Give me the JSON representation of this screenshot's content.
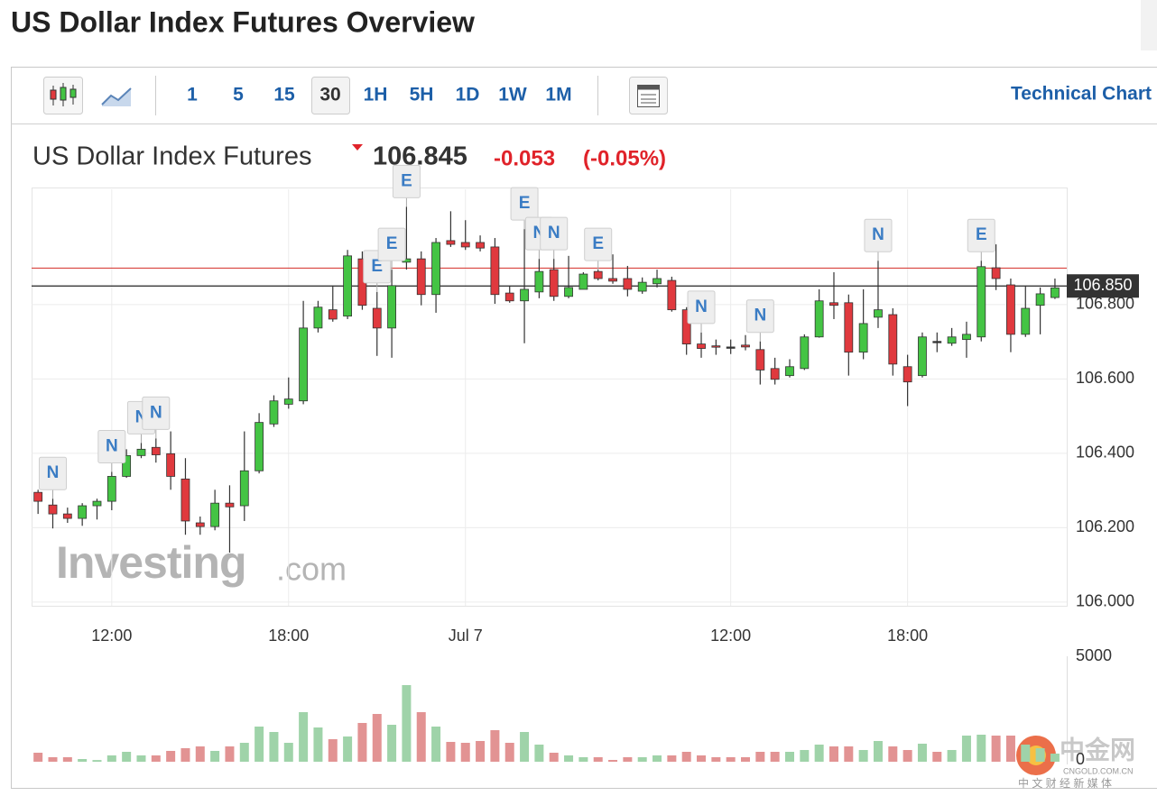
{
  "header": {
    "title": "US Dollar Index Futures Overview"
  },
  "toolbar": {
    "intervals": [
      "1",
      "5",
      "15",
      "30",
      "1H",
      "5H",
      "1D",
      "1W",
      "1M"
    ],
    "active_index": 3,
    "link": "Technical Chart"
  },
  "quote": {
    "name": "US Dollar Index Futures",
    "price": "106.845",
    "change": "-0.053",
    "change_pct": "(-0.05%)"
  },
  "watermark": {
    "brand": "Investing",
    "suffix": ".com"
  },
  "corner_logo": {
    "name": "中金网",
    "domain": "CNGOLD.COM.CN",
    "tagline": "中 文 财 经 新 媒 体"
  },
  "chart_data": {
    "type": "candlestick",
    "categories": [
      null,
      null,
      null,
      null,
      null,
      "12:00",
      null,
      null,
      null,
      null,
      null,
      null,
      null,
      null,
      null,
      null,
      null,
      "18:00",
      null,
      null,
      null,
      null,
      null,
      null,
      null,
      null,
      null,
      null,
      null,
      "Jul 7",
      null,
      null,
      null,
      null,
      null,
      null,
      null,
      null,
      null,
      null,
      null,
      null,
      null,
      null,
      null,
      null,
      null,
      "12:00",
      null,
      null,
      null,
      null,
      null,
      null,
      null,
      null,
      null,
      null,
      null,
      "18:00",
      null,
      null,
      null,
      null,
      null,
      null,
      null,
      null,
      null,
      null
    ],
    "open": [
      106.295,
      106.261,
      106.237,
      106.225,
      106.259,
      106.271,
      106.338,
      106.394,
      106.416,
      106.399,
      106.331,
      106.213,
      106.203,
      106.266,
      106.259,
      106.353,
      106.479,
      106.532,
      106.541,
      106.737,
      106.786,
      106.769,
      106.923,
      106.79,
      106.737,
      106.914,
      106.923,
      106.827,
      106.972,
      106.967,
      106.967,
      106.955,
      106.831,
      106.81,
      106.834,
      106.894,
      106.822,
      106.841,
      106.889,
      106.87,
      106.87,
      106.836,
      106.856,
      106.865,
      106.786,
      106.694,
      106.689,
      106.686,
      106.691,
      106.679,
      106.628,
      106.609,
      106.628,
      106.713,
      106.805,
      106.805,
      106.672,
      106.766,
      106.773,
      106.633,
      106.609,
      106.701,
      106.696,
      106.706,
      106.713,
      106.899,
      106.853,
      106.72,
      106.798,
      106.819
    ],
    "high": [
      106.302,
      106.278,
      106.254,
      106.266,
      106.278,
      106.35,
      106.411,
      106.428,
      106.44,
      106.459,
      106.387,
      106.23,
      106.302,
      106.314,
      106.459,
      106.508,
      106.556,
      106.604,
      106.81,
      106.81,
      106.851,
      106.947,
      106.943,
      106.834,
      106.894,
      107.063,
      106.943,
      106.979,
      107.051,
      107.027,
      106.986,
      106.979,
      106.851,
      107.003,
      106.923,
      106.923,
      106.931,
      106.887,
      106.894,
      106.935,
      106.904,
      106.873,
      106.894,
      106.875,
      106.793,
      106.725,
      106.706,
      106.706,
      106.718,
      106.701,
      106.657,
      106.653,
      106.72,
      106.841,
      106.887,
      106.827,
      106.841,
      106.918,
      106.79,
      106.665,
      106.725,
      106.725,
      106.737,
      106.754,
      106.918,
      106.962,
      106.87,
      106.851,
      106.846,
      106.87
    ],
    "low": [
      106.237,
      106.198,
      106.213,
      106.205,
      106.222,
      106.247,
      106.334,
      106.387,
      106.375,
      106.302,
      106.181,
      106.181,
      106.193,
      106.133,
      106.218,
      106.346,
      106.471,
      106.52,
      106.532,
      106.725,
      106.754,
      106.761,
      106.786,
      106.662,
      106.657,
      106.894,
      106.798,
      106.778,
      106.955,
      106.947,
      106.943,
      106.802,
      106.805,
      106.696,
      106.817,
      106.81,
      106.817,
      106.841,
      106.865,
      106.856,
      106.822,
      106.829,
      106.846,
      106.781,
      106.665,
      106.657,
      106.665,
      106.667,
      106.677,
      106.585,
      106.585,
      106.604,
      106.624,
      106.711,
      106.761,
      106.609,
      106.653,
      106.737,
      106.609,
      106.527,
      106.604,
      106.672,
      106.689,
      106.657,
      106.701,
      106.839,
      106.672,
      106.713,
      106.72,
      106.815
    ],
    "close": [
      106.271,
      106.237,
      106.225,
      106.259,
      106.271,
      106.338,
      106.394,
      106.411,
      106.396,
      106.338,
      106.218,
      106.203,
      106.266,
      106.256,
      106.353,
      106.483,
      106.541,
      106.546,
      106.737,
      106.793,
      106.761,
      106.931,
      106.798,
      106.737,
      106.851,
      106.923,
      106.827,
      106.967,
      106.962,
      106.955,
      106.952,
      106.827,
      106.81,
      106.841,
      106.889,
      106.822,
      106.846,
      106.882,
      106.87,
      106.863,
      106.841,
      106.86,
      106.87,
      106.786,
      106.694,
      106.682,
      106.686,
      106.686,
      106.686,
      106.624,
      106.599,
      106.633,
      106.713,
      106.81,
      106.798,
      106.672,
      106.749,
      106.786,
      106.64,
      106.592,
      106.713,
      106.701,
      106.713,
      106.72,
      106.902,
      106.87,
      106.72,
      106.79,
      106.829,
      106.845
    ],
    "volume": [
      427,
      214,
      214,
      128,
      80,
      300,
      470,
      300,
      300,
      513,
      641,
      726,
      513,
      726,
      897,
      1667,
      1410,
      897,
      2350,
      1624,
      1068,
      1196,
      1838,
      2265,
      1752,
      3632,
      2350,
      1667,
      940,
      897,
      983,
      1496,
      897,
      1410,
      812,
      427,
      300,
      214,
      214,
      85,
      214,
      214,
      300,
      300,
      470,
      300,
      214,
      214,
      214,
      470,
      470,
      470,
      556,
      812,
      726,
      726,
      556,
      983,
      726,
      556,
      855,
      470,
      556,
      1239,
      1282,
      1239,
      1239,
      812,
      641,
      385
    ],
    "up_color": "#44c444",
    "down_color": "#e0393e",
    "up_volume_color": "#9fd3a9",
    "down_volume_color": "#e29393",
    "ylim": [
      105.99,
      107.11
    ],
    "yticks": [
      {
        "value": 106,
        "label": "106.000"
      },
      {
        "value": 106.2,
        "label": "106.200"
      },
      {
        "value": 106.4,
        "label": "106.400"
      },
      {
        "value": 106.6,
        "label": "106.600"
      },
      {
        "value": 106.8,
        "label": "106.800"
      }
    ],
    "y2lim": [
      0,
      5000
    ],
    "y2ticks": [
      0,
      5000
    ],
    "prev_close": 106.898,
    "price_marker": {
      "value": 106.85,
      "label": "106.850"
    },
    "grid": true,
    "events": [
      {
        "label": "N",
        "index": 1
      },
      {
        "label": "N",
        "index": 5
      },
      {
        "label": "N",
        "index": 7
      },
      {
        "label": "N",
        "index": 8
      },
      {
        "label": "E",
        "index": 23
      },
      {
        "label": "E",
        "index": 24
      },
      {
        "label": "E",
        "index": 25
      },
      {
        "label": "E",
        "index": 33
      },
      {
        "label": "N",
        "index": 34
      },
      {
        "label": "N",
        "index": 35
      },
      {
        "label": "E",
        "index": 38
      },
      {
        "label": "N",
        "index": 45
      },
      {
        "label": "N",
        "index": 49
      },
      {
        "label": "N",
        "index": 57
      },
      {
        "label": "E",
        "index": 64
      }
    ]
  }
}
